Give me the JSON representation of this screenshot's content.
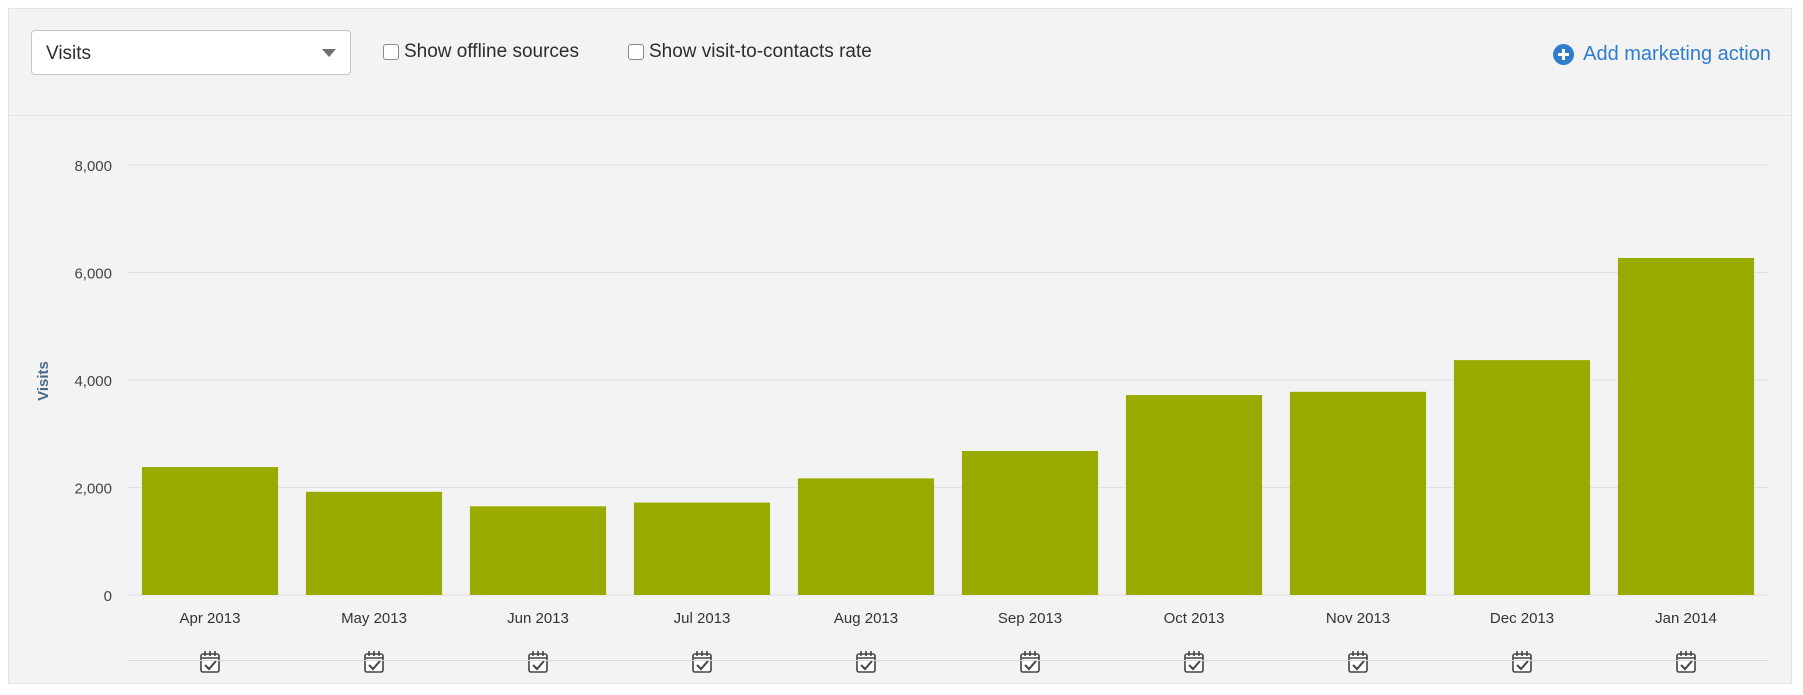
{
  "toolbar": {
    "metric_select": {
      "value": "Visits"
    },
    "checkboxes": [
      {
        "label": "Show offline sources",
        "checked": false
      },
      {
        "label": "Show visit-to-contacts rate",
        "checked": false
      }
    ],
    "add_action_label": "Add marketing action"
  },
  "colors": {
    "bar": "#9aab00",
    "link": "#2f7dcd",
    "gridline": "#e0e0e0",
    "axis_label": "#4b6a88"
  },
  "chart_data": {
    "type": "bar",
    "title": "",
    "ylabel": "Visits",
    "xlabel": "",
    "ylim": [
      0,
      8000
    ],
    "yticks": [
      0,
      2000,
      4000,
      6000,
      8000
    ],
    "ytick_labels": [
      "0",
      "2,000",
      "4,000",
      "6,000",
      "8,000"
    ],
    "categories": [
      "Apr 2013",
      "May 2013",
      "Jun 2013",
      "Jul 2013",
      "Aug 2013",
      "Sep 2013",
      "Oct 2013",
      "Nov 2013",
      "Dec 2013",
      "Jan 2014"
    ],
    "values": [
      2380,
      1920,
      1650,
      1720,
      2170,
      2680,
      3720,
      3780,
      4370,
      6270
    ],
    "grid": true,
    "event_icon": "calendar-check-icon"
  }
}
